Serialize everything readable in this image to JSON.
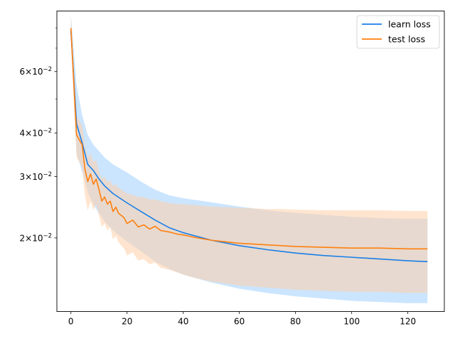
{
  "chart_data": {
    "type": "line",
    "title": "",
    "xlabel": "",
    "ylabel": "",
    "yscale": "log",
    "xlim": [
      -5,
      133
    ],
    "ylim": [
      0.0123,
      0.0895
    ],
    "grid": false,
    "legend_position": "top-right",
    "x_ticks": [
      {
        "value": 0,
        "label": "0"
      },
      {
        "value": 20,
        "label": "20"
      },
      {
        "value": 40,
        "label": "40"
      },
      {
        "value": 60,
        "label": "60"
      },
      {
        "value": 80,
        "label": "80"
      },
      {
        "value": 100,
        "label": "100"
      },
      {
        "value": 120,
        "label": "120"
      }
    ],
    "y_ticks": [
      {
        "value": 0.02,
        "base": "2",
        "exp": "−2"
      },
      {
        "value": 0.03,
        "base": "3",
        "exp": "−2"
      },
      {
        "value": 0.04,
        "base": "4",
        "exp": "−2"
      },
      {
        "value": 0.06,
        "base": "6",
        "exp": "−2"
      }
    ],
    "y_minor_ticks": [
      0.05,
      0.07,
      0.08
    ],
    "series": [
      {
        "name": "learn loss",
        "color": "#1a7fe8",
        "band_color": "#b9dcff",
        "x": [
          0,
          2,
          4,
          6,
          8,
          10,
          12,
          15,
          20,
          25,
          30,
          35,
          40,
          50,
          60,
          70,
          80,
          90,
          100,
          110,
          120,
          127
        ],
        "mean": [
          0.0785,
          0.0425,
          0.0375,
          0.0325,
          0.0312,
          0.0295,
          0.0282,
          0.0268,
          0.0252,
          0.0238,
          0.0225,
          0.0214,
          0.0207,
          0.0197,
          0.019,
          0.0185,
          0.0181,
          0.0178,
          0.0176,
          0.0174,
          0.0172,
          0.0171
        ],
        "upper": [
          0.087,
          0.055,
          0.045,
          0.0395,
          0.037,
          0.0355,
          0.034,
          0.0325,
          0.0308,
          0.029,
          0.0275,
          0.0265,
          0.026,
          0.0253,
          0.0246,
          0.024,
          0.0236,
          0.0233,
          0.023,
          0.0228,
          0.0227,
          0.0227
        ],
        "lower": [
          0.074,
          0.035,
          0.031,
          0.027,
          0.025,
          0.0235,
          0.0223,
          0.021,
          0.0195,
          0.0183,
          0.0171,
          0.0163,
          0.0157,
          0.0149,
          0.0143,
          0.0139,
          0.0136,
          0.0134,
          0.0132,
          0.0131,
          0.013,
          0.013
        ]
      },
      {
        "name": "test loss",
        "color": "#ff7f0e",
        "band_color": "#ffd0a8",
        "x": [
          0,
          2,
          4,
          5,
          6,
          7,
          8,
          9,
          10,
          11,
          12,
          13,
          14,
          15,
          16,
          17,
          18,
          19,
          20,
          22,
          24,
          26,
          28,
          30,
          32,
          35,
          38,
          40,
          45,
          50,
          55,
          60,
          65,
          70,
          75,
          80,
          90,
          100,
          110,
          120,
          127
        ],
        "mean": [
          0.08,
          0.0395,
          0.037,
          0.0315,
          0.029,
          0.0305,
          0.0285,
          0.0295,
          0.0275,
          0.0255,
          0.0262,
          0.025,
          0.0255,
          0.0238,
          0.0245,
          0.0235,
          0.0232,
          0.0228,
          0.022,
          0.0225,
          0.0215,
          0.0218,
          0.0212,
          0.0216,
          0.021,
          0.0208,
          0.0205,
          0.0204,
          0.02,
          0.0197,
          0.0195,
          0.0193,
          0.0192,
          0.0191,
          0.019,
          0.0189,
          0.0188,
          0.0187,
          0.0187,
          0.0186,
          0.0186
        ],
        "upper": [
          0.087,
          0.045,
          0.042,
          0.0365,
          0.034,
          0.035,
          0.033,
          0.0335,
          0.031,
          0.0295,
          0.03,
          0.029,
          0.0292,
          0.0282,
          0.0285,
          0.0278,
          0.0275,
          0.0272,
          0.0268,
          0.0266,
          0.0262,
          0.0262,
          0.0258,
          0.0258,
          0.0255,
          0.0252,
          0.025,
          0.025,
          0.0248,
          0.0246,
          0.0245,
          0.0244,
          0.0243,
          0.0242,
          0.0242,
          0.0241,
          0.024,
          0.024,
          0.024,
          0.0239,
          0.0239
        ],
        "lower": [
          0.0735,
          0.034,
          0.032,
          0.0265,
          0.024,
          0.0255,
          0.024,
          0.025,
          0.0232,
          0.0215,
          0.022,
          0.021,
          0.0215,
          0.0198,
          0.0203,
          0.0194,
          0.019,
          0.0186,
          0.0178,
          0.0182,
          0.0172,
          0.0174,
          0.0168,
          0.017,
          0.0164,
          0.0162,
          0.0159,
          0.0157,
          0.0153,
          0.015,
          0.0148,
          0.0146,
          0.0145,
          0.0144,
          0.0143,
          0.0142,
          0.0141,
          0.014,
          0.014,
          0.0139,
          0.0139
        ]
      }
    ]
  }
}
